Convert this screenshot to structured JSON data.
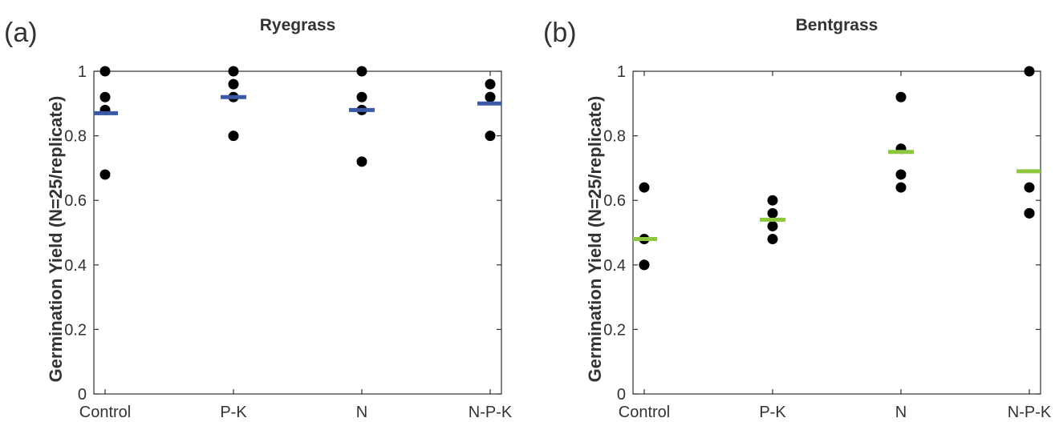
{
  "chart_data": [
    {
      "type": "strip",
      "panel_label": "(a)",
      "title": "Ryegrass",
      "ylabel": "Germination Yield (N=25/replicate)",
      "categories": [
        "Control",
        "P-K",
        "N",
        "N-P-K"
      ],
      "points": [
        [
          1,
          0.92,
          0.88,
          0.68
        ],
        [
          1,
          0.96,
          0.92,
          0.8
        ],
        [
          1,
          0.92,
          0.88,
          0.72
        ],
        [
          0.96,
          0.92,
          0.92,
          0.8
        ]
      ],
      "means": [
        0.87,
        0.92,
        0.88,
        0.9
      ],
      "point_color": "#000000",
      "mean_color": "#3a5aa8",
      "ylim": [
        0,
        1
      ],
      "yticks": [
        0,
        0.2,
        0.4,
        0.6,
        0.8,
        1
      ]
    },
    {
      "type": "strip",
      "panel_label": "(b)",
      "title": "Bentgrass",
      "ylabel": "Germination Yield (N=25/replicate)",
      "categories": [
        "Control",
        "P-K",
        "N",
        "N-P-K"
      ],
      "points": [
        [
          0.64,
          0.48,
          0.4,
          0.4
        ],
        [
          0.6,
          0.56,
          0.52,
          0.48
        ],
        [
          0.92,
          0.76,
          0.68,
          0.64
        ],
        [
          1,
          0.64,
          0.56,
          0.56
        ]
      ],
      "means": [
        0.48,
        0.54,
        0.75,
        0.69
      ],
      "point_color": "#000000",
      "mean_color": "#8dc63f",
      "ylim": [
        0,
        1
      ],
      "yticks": [
        0,
        0.2,
        0.4,
        0.6,
        0.8,
        1
      ]
    }
  ]
}
